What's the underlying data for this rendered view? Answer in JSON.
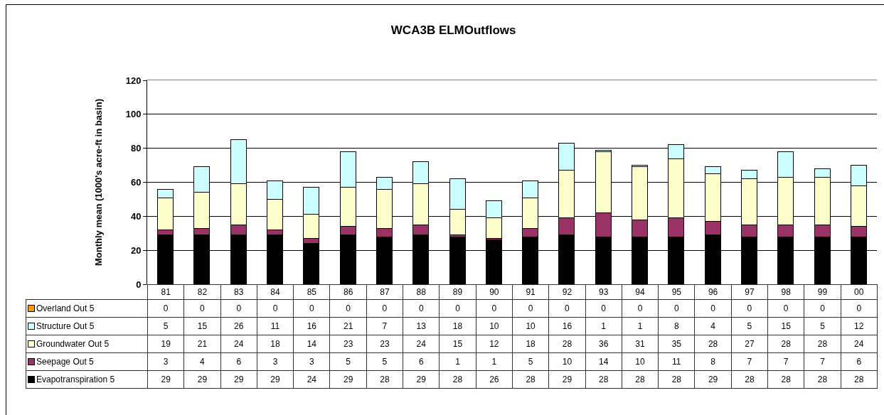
{
  "chart_data": {
    "type": "bar",
    "title": "WCA3B ELMOutflows",
    "ylabel": "Monthly mean (1000's acre-ft in basin)",
    "categories": [
      "81",
      "82",
      "83",
      "84",
      "85",
      "86",
      "87",
      "88",
      "89",
      "90",
      "91",
      "92",
      "93",
      "94",
      "95",
      "96",
      "97",
      "98",
      "99",
      "00"
    ],
    "series": [
      {
        "name": "Evapotranspiration 5",
        "color": "#000000",
        "values": [
          29,
          29,
          29,
          29,
          24,
          29,
          28,
          29,
          28,
          26,
          28,
          29,
          28,
          28,
          28,
          29,
          28,
          28,
          28,
          28
        ]
      },
      {
        "name": "Seepage Out 5",
        "color": "#993366",
        "values": [
          3,
          4,
          6,
          3,
          3,
          5,
          5,
          6,
          1,
          1,
          5,
          10,
          14,
          10,
          11,
          8,
          7,
          7,
          7,
          6
        ]
      },
      {
        "name": "Groundwater Out 5",
        "color": "#ffffcc",
        "values": [
          19,
          21,
          24,
          18,
          14,
          23,
          23,
          24,
          15,
          12,
          18,
          28,
          36,
          31,
          35,
          28,
          27,
          28,
          28,
          24
        ]
      },
      {
        "name": "Structure Out 5",
        "color": "#ccffff",
        "values": [
          5,
          15,
          26,
          11,
          16,
          21,
          7,
          13,
          18,
          10,
          10,
          16,
          1,
          1,
          8,
          4,
          5,
          15,
          5,
          12
        ]
      },
      {
        "name": "Overland Out 5",
        "color": "#ff9900",
        "values": [
          0,
          0,
          0,
          0,
          0,
          0,
          0,
          0,
          0,
          0,
          0,
          0,
          0,
          0,
          0,
          0,
          0,
          0,
          0,
          0
        ]
      }
    ],
    "stacked": true,
    "ylim": [
      0,
      120
    ],
    "yticks": [
      0,
      20,
      40,
      60,
      80,
      100,
      120
    ],
    "grid": "y",
    "legend": "bottom",
    "data_labels": true
  }
}
